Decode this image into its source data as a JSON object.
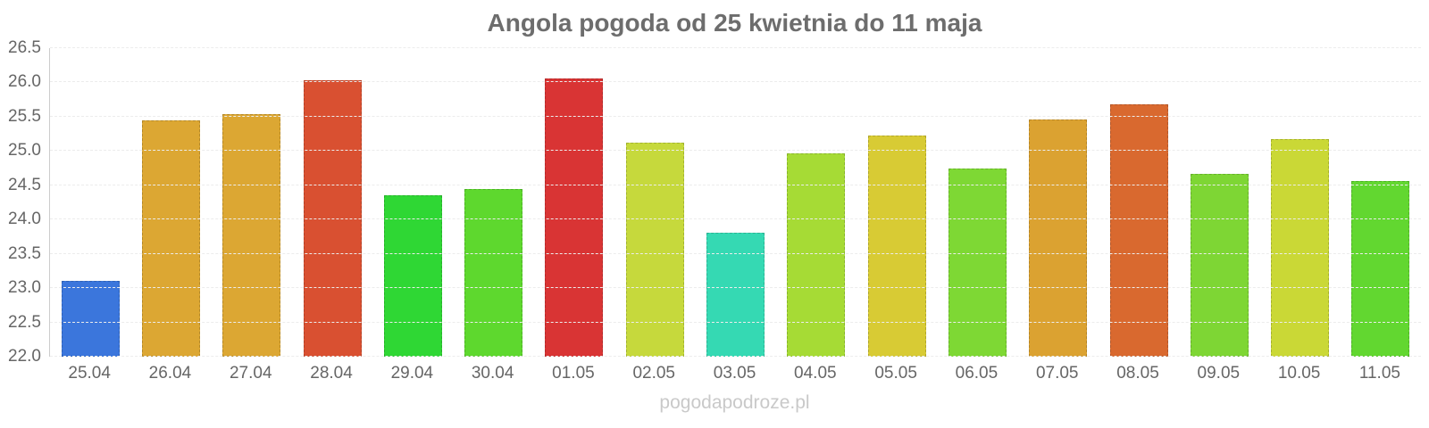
{
  "chart_data": {
    "type": "bar",
    "title": "Angola pogoda od 25 kwietnia do 11 maja",
    "xlabel": "",
    "ylabel": "",
    "categories": [
      "25.04",
      "26.04",
      "27.04",
      "28.04",
      "29.04",
      "30.04",
      "01.05",
      "02.05",
      "03.05",
      "04.05",
      "05.05",
      "06.05",
      "07.05",
      "08.05",
      "09.05",
      "10.05",
      "11.05"
    ],
    "values": [
      23.1,
      25.45,
      25.54,
      26.03,
      24.36,
      24.44,
      26.06,
      25.12,
      23.81,
      24.97,
      25.23,
      24.75,
      25.46,
      25.68,
      24.66,
      25.17,
      24.56
    ],
    "bar_colors": [
      "#3b76dc",
      "#dca733",
      "#dca733",
      "#d95031",
      "#2fd734",
      "#5ed82e",
      "#d93434",
      "#c6d93c",
      "#35d9b3",
      "#a6db35",
      "#d8cb34",
      "#7ed834",
      "#dba231",
      "#d9692f",
      "#7ed634",
      "#cad836",
      "#62d730"
    ],
    "ylim": [
      22.0,
      26.5
    ],
    "ytick_step": 0.5,
    "grid": true,
    "legend_position": "none"
  },
  "footer": {
    "watermark": "pogodapodroze.pl"
  },
  "colors": {
    "background": "#ffffff",
    "title": "#6d6d6d",
    "axis_labels": "#666666",
    "gridline": "#ececec",
    "axis_line": "#cccccc",
    "watermark": "#c9c9c9"
  }
}
